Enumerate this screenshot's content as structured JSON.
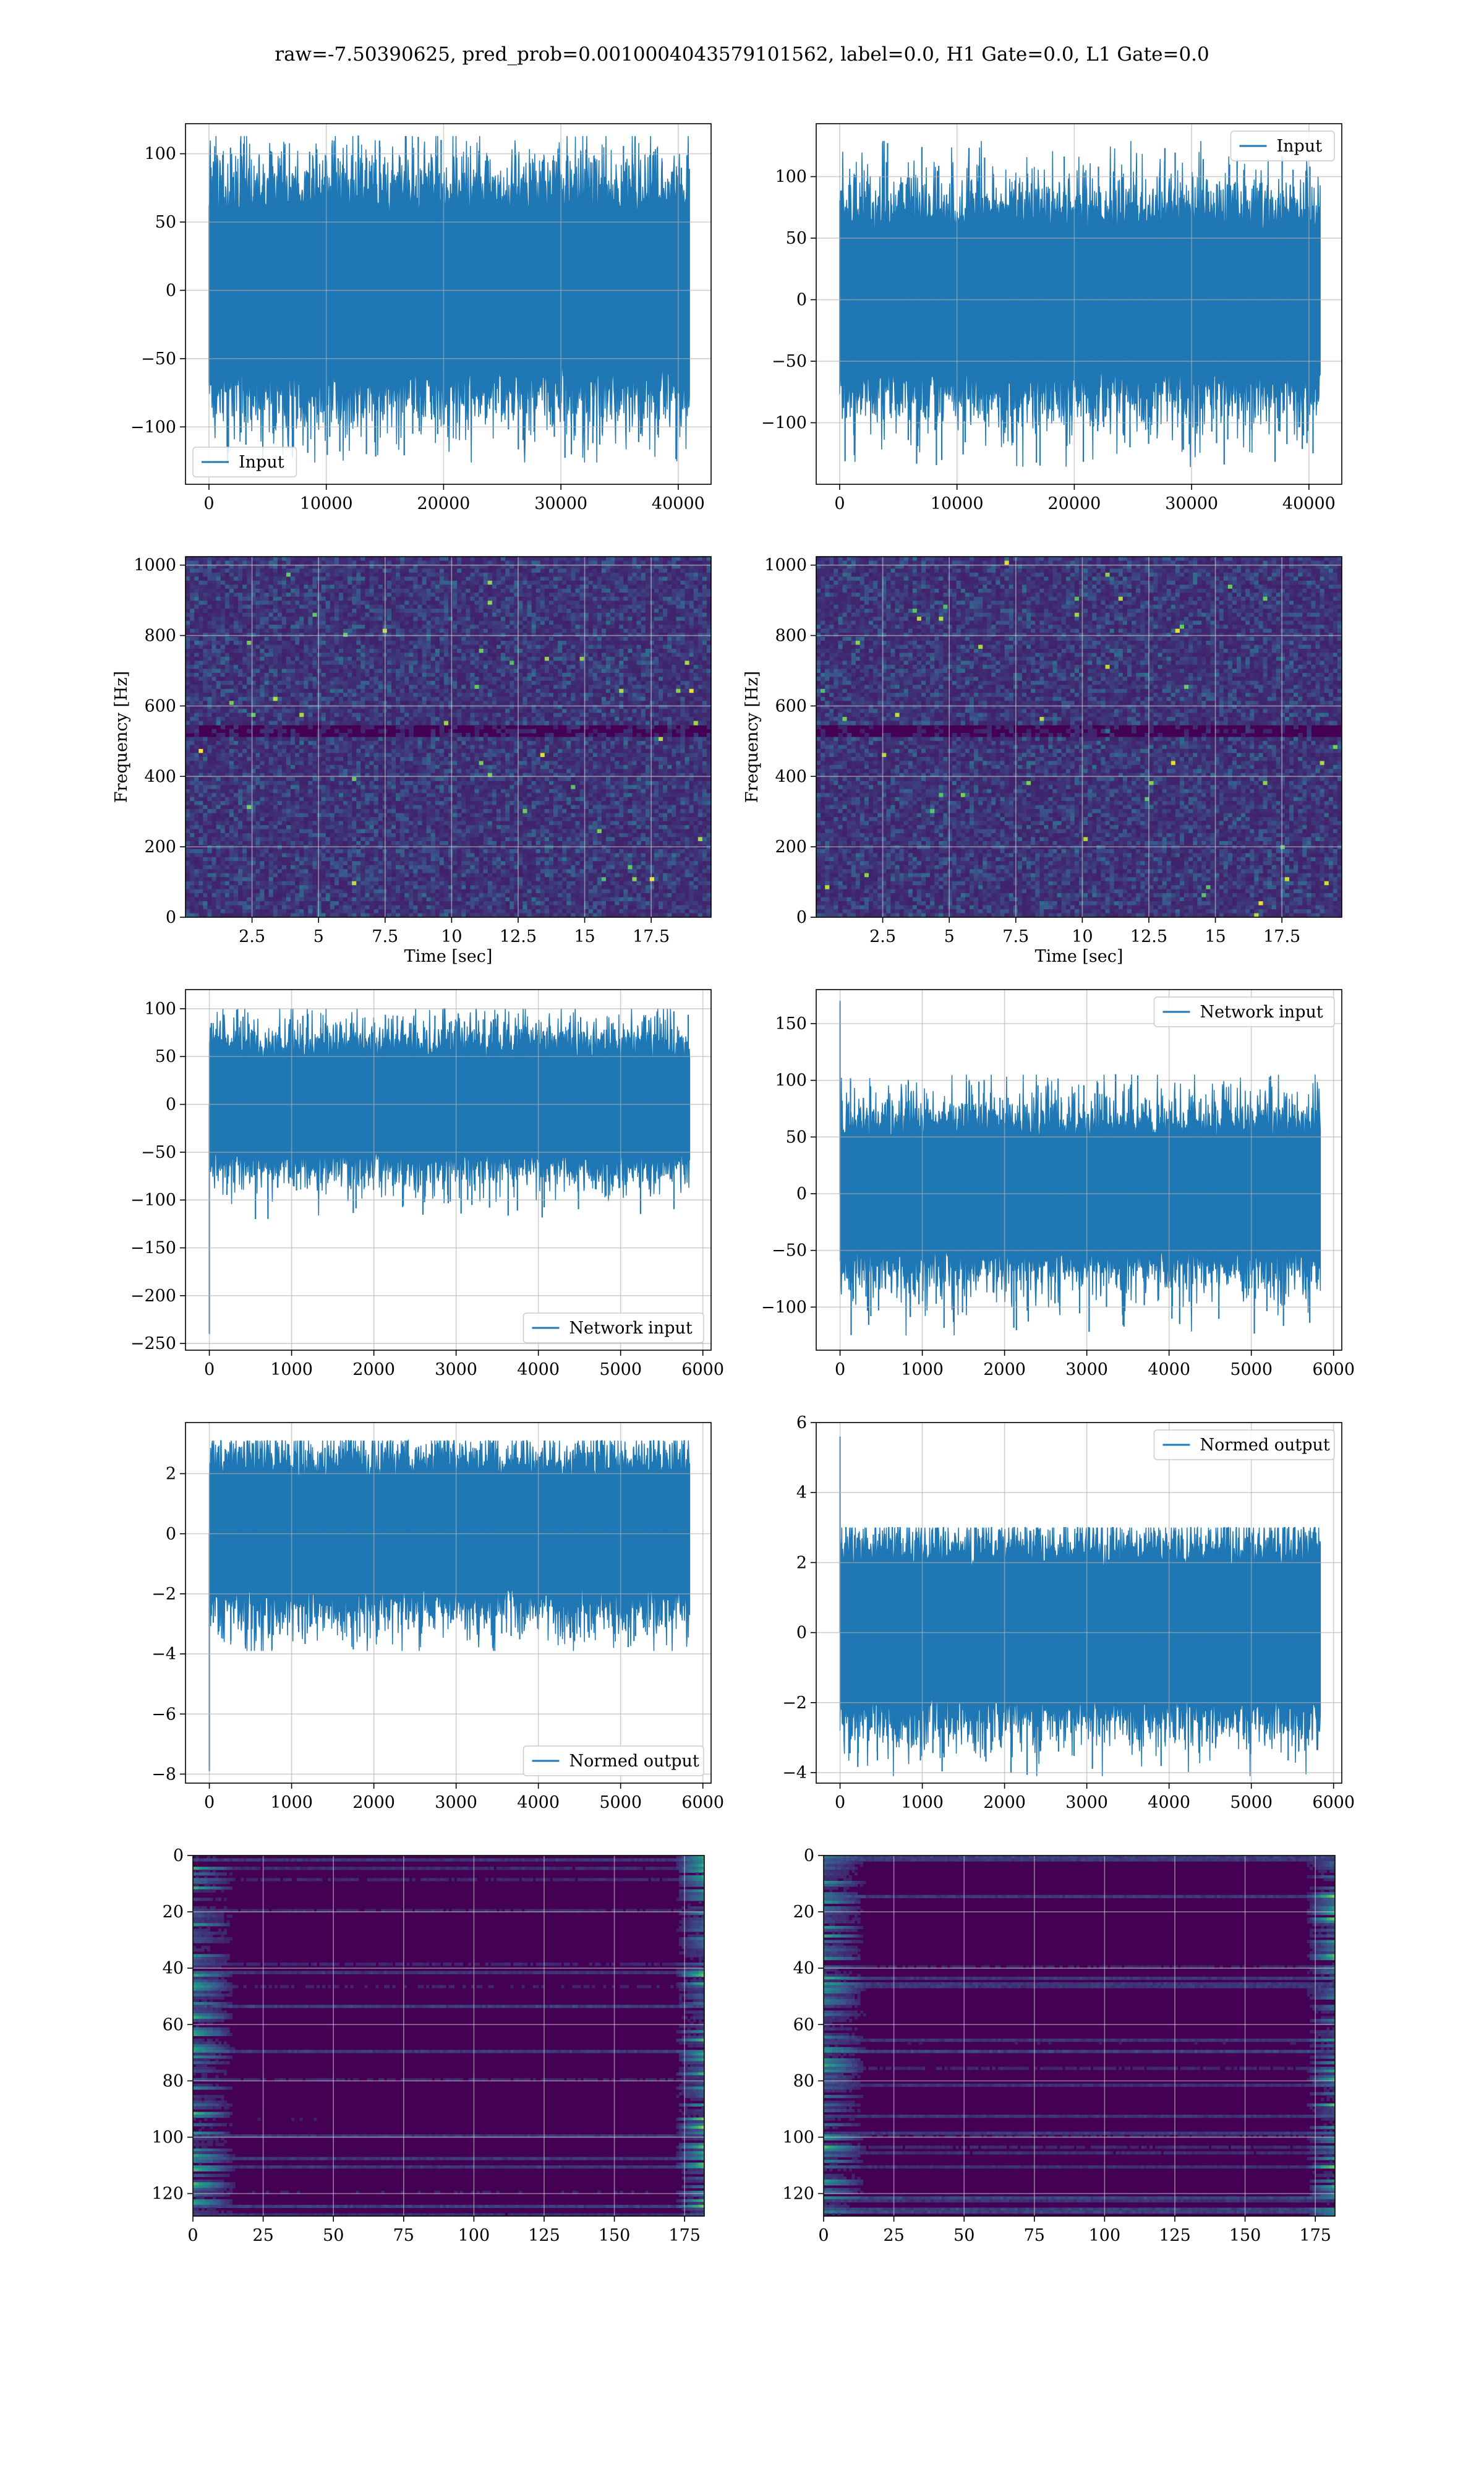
{
  "suptitle": "raw=-7.50390625, pred_prob=0.0010004043579101562, label=0.0, H1 Gate=0.0, L1 Gate=0.0",
  "colors": {
    "line": "#1f77b4",
    "grid": "#b0b0b0",
    "viridis_dark": "#440154"
  },
  "chart_data": [
    {
      "type": "line",
      "name": "input-h1",
      "series": [
        {
          "name": "Input"
        }
      ],
      "legend": "lower-left",
      "xlim": [
        -2000,
        42800
      ],
      "ylim": [
        -142,
        122
      ],
      "xticks": [
        0,
        10000,
        20000,
        30000,
        40000
      ],
      "yticks": [
        100,
        50,
        0,
        -50,
        -100
      ],
      "signal": {
        "n": 40960,
        "sigma": 28,
        "max": 113,
        "min": -126,
        "spike": null
      },
      "grid": true
    },
    {
      "type": "line",
      "name": "input-l1",
      "series": [
        {
          "name": "Input"
        }
      ],
      "legend": "upper-right",
      "xlim": [
        -2000,
        42800
      ],
      "ylim": [
        -150,
        143
      ],
      "xticks": [
        0,
        10000,
        20000,
        30000,
        40000
      ],
      "yticks": [
        100,
        50,
        0,
        -50,
        -100
      ],
      "signal": {
        "n": 40960,
        "sigma": 28,
        "max": 129,
        "min": -136,
        "spike": null
      },
      "grid": true
    },
    {
      "type": "heatmap",
      "name": "spectrogram-h1",
      "xlabel": "Time [sec]",
      "ylabel": "Frequency [Hz]",
      "xlim": [
        0,
        19.75
      ],
      "ylim": [
        0,
        1024
      ],
      "xticks": [
        2.5,
        5.0,
        7.5,
        10.0,
        12.5,
        15.0,
        17.5
      ],
      "yticks": [
        0,
        200,
        400,
        600,
        800,
        1000
      ],
      "grid": true
    },
    {
      "type": "heatmap",
      "name": "spectrogram-l1",
      "xlabel": "Time [sec]",
      "ylabel": "Frequency [Hz]",
      "xlim": [
        0,
        19.75
      ],
      "ylim": [
        0,
        1024
      ],
      "xticks": [
        2.5,
        5.0,
        7.5,
        10.0,
        12.5,
        15.0,
        17.5
      ],
      "yticks": [
        0,
        200,
        400,
        600,
        800,
        1000
      ],
      "grid": true
    },
    {
      "type": "line",
      "name": "network-input-h1",
      "series": [
        {
          "name": "Network input"
        }
      ],
      "legend": "lower-right",
      "xlim": [
        -290,
        6100
      ],
      "ylim": [
        -257,
        120
      ],
      "xticks": [
        0,
        1000,
        2000,
        3000,
        4000,
        5000,
        6000
      ],
      "yticks": [
        100,
        50,
        0,
        -50,
        -100,
        -150,
        -200,
        -250
      ],
      "signal": {
        "n": 5840,
        "sigma": 24,
        "max": 100,
        "min": -120,
        "spike": -240
      },
      "grid": true
    },
    {
      "type": "line",
      "name": "network-input-l1",
      "series": [
        {
          "name": "Network input"
        }
      ],
      "legend": "upper-right",
      "xlim": [
        -290,
        6100
      ],
      "ylim": [
        -138,
        180
      ],
      "xticks": [
        0,
        1000,
        2000,
        3000,
        4000,
        5000,
        6000
      ],
      "yticks": [
        150,
        100,
        50,
        0,
        -50,
        -100
      ],
      "signal": {
        "n": 5840,
        "sigma": 24,
        "max": 105,
        "min": -125,
        "spike": 170
      },
      "grid": true
    },
    {
      "type": "line",
      "name": "normed-output-h1",
      "series": [
        {
          "name": "Normed output"
        }
      ],
      "legend": "lower-right",
      "xlim": [
        -290,
        6100
      ],
      "ylim": [
        -8.3,
        3.7
      ],
      "xticks": [
        0,
        1000,
        2000,
        3000,
        4000,
        5000,
        6000
      ],
      "yticks": [
        2,
        0,
        -2,
        -4,
        -6,
        -8
      ],
      "signal": {
        "n": 5840,
        "sigma": 0.9,
        "max": 3.1,
        "min": -3.9,
        "spike": -7.9
      },
      "grid": true
    },
    {
      "type": "line",
      "name": "normed-output-l1",
      "series": [
        {
          "name": "Normed output"
        }
      ],
      "legend": "upper-right",
      "xlim": [
        -290,
        6100
      ],
      "ylim": [
        -4.3,
        6.0
      ],
      "xticks": [
        0,
        1000,
        2000,
        3000,
        4000,
        5000,
        6000
      ],
      "yticks": [
        6,
        4,
        2,
        0,
        -2,
        -4
      ],
      "signal": {
        "n": 5840,
        "sigma": 0.9,
        "max": 3.0,
        "min": -4.1,
        "spike": 5.6
      },
      "grid": true
    },
    {
      "type": "heatmap",
      "name": "embedding-h1",
      "xlim": [
        0,
        182
      ],
      "ylim": [
        128,
        0
      ],
      "xticks": [
        0,
        25,
        50,
        75,
        100,
        125,
        150,
        175
      ],
      "yticks": [
        0,
        20,
        40,
        60,
        80,
        100,
        120
      ],
      "grid": true
    },
    {
      "type": "heatmap",
      "name": "embedding-l1",
      "xlim": [
        0,
        182
      ],
      "ylim": [
        128,
        0
      ],
      "xticks": [
        0,
        25,
        50,
        75,
        100,
        125,
        150,
        175
      ],
      "yticks": [
        0,
        20,
        40,
        60,
        80,
        100,
        120
      ],
      "grid": true
    }
  ]
}
